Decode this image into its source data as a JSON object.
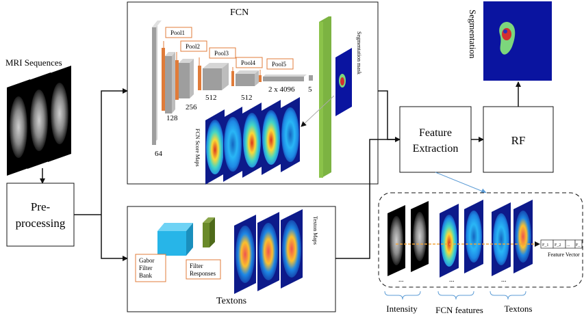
{
  "input": {
    "label": "MRI Sequences"
  },
  "preprocessing": {
    "line1": "Pre-",
    "line2": "processing"
  },
  "fcn": {
    "title": "FCN",
    "pools": [
      "Pool1",
      "Pool2",
      "Pool3",
      "Pool4",
      "Pool5"
    ],
    "dims": [
      "64",
      "128",
      "256",
      "512",
      "512",
      "2 x 4096",
      "5"
    ],
    "score_maps_label": "FCN Score Maps",
    "seg_mask_label": "Segmentation mask"
  },
  "textons": {
    "title": "Textons",
    "gabor": [
      "Gabor",
      "Filter",
      "Bank"
    ],
    "filter_resp": [
      "Filter",
      "Responses"
    ],
    "maps_label": "Texton Maps"
  },
  "feature_extraction": {
    "line1": "Feature",
    "line2": "Extraction"
  },
  "rf": {
    "label": "RF"
  },
  "segmentation": {
    "label": "Segmentation"
  },
  "features_panel": {
    "ellipsis": "...",
    "vector_cells": [
      "F_1",
      "F_2",
      "...",
      "F_"
    ],
    "vector_label": "Feature Vector",
    "groups": [
      "Intensity",
      "FCN features",
      "Textons"
    ]
  },
  "colors": {
    "arrow": "#111111",
    "callout": "#5b9bd5",
    "gabor": "#27b5e8",
    "filter_resp": "#6a8a2a",
    "fc_bar": "#7cb342",
    "mask_bg": "#0a14a0",
    "conv": "#9e9e9e",
    "pool": "#e07b39"
  }
}
